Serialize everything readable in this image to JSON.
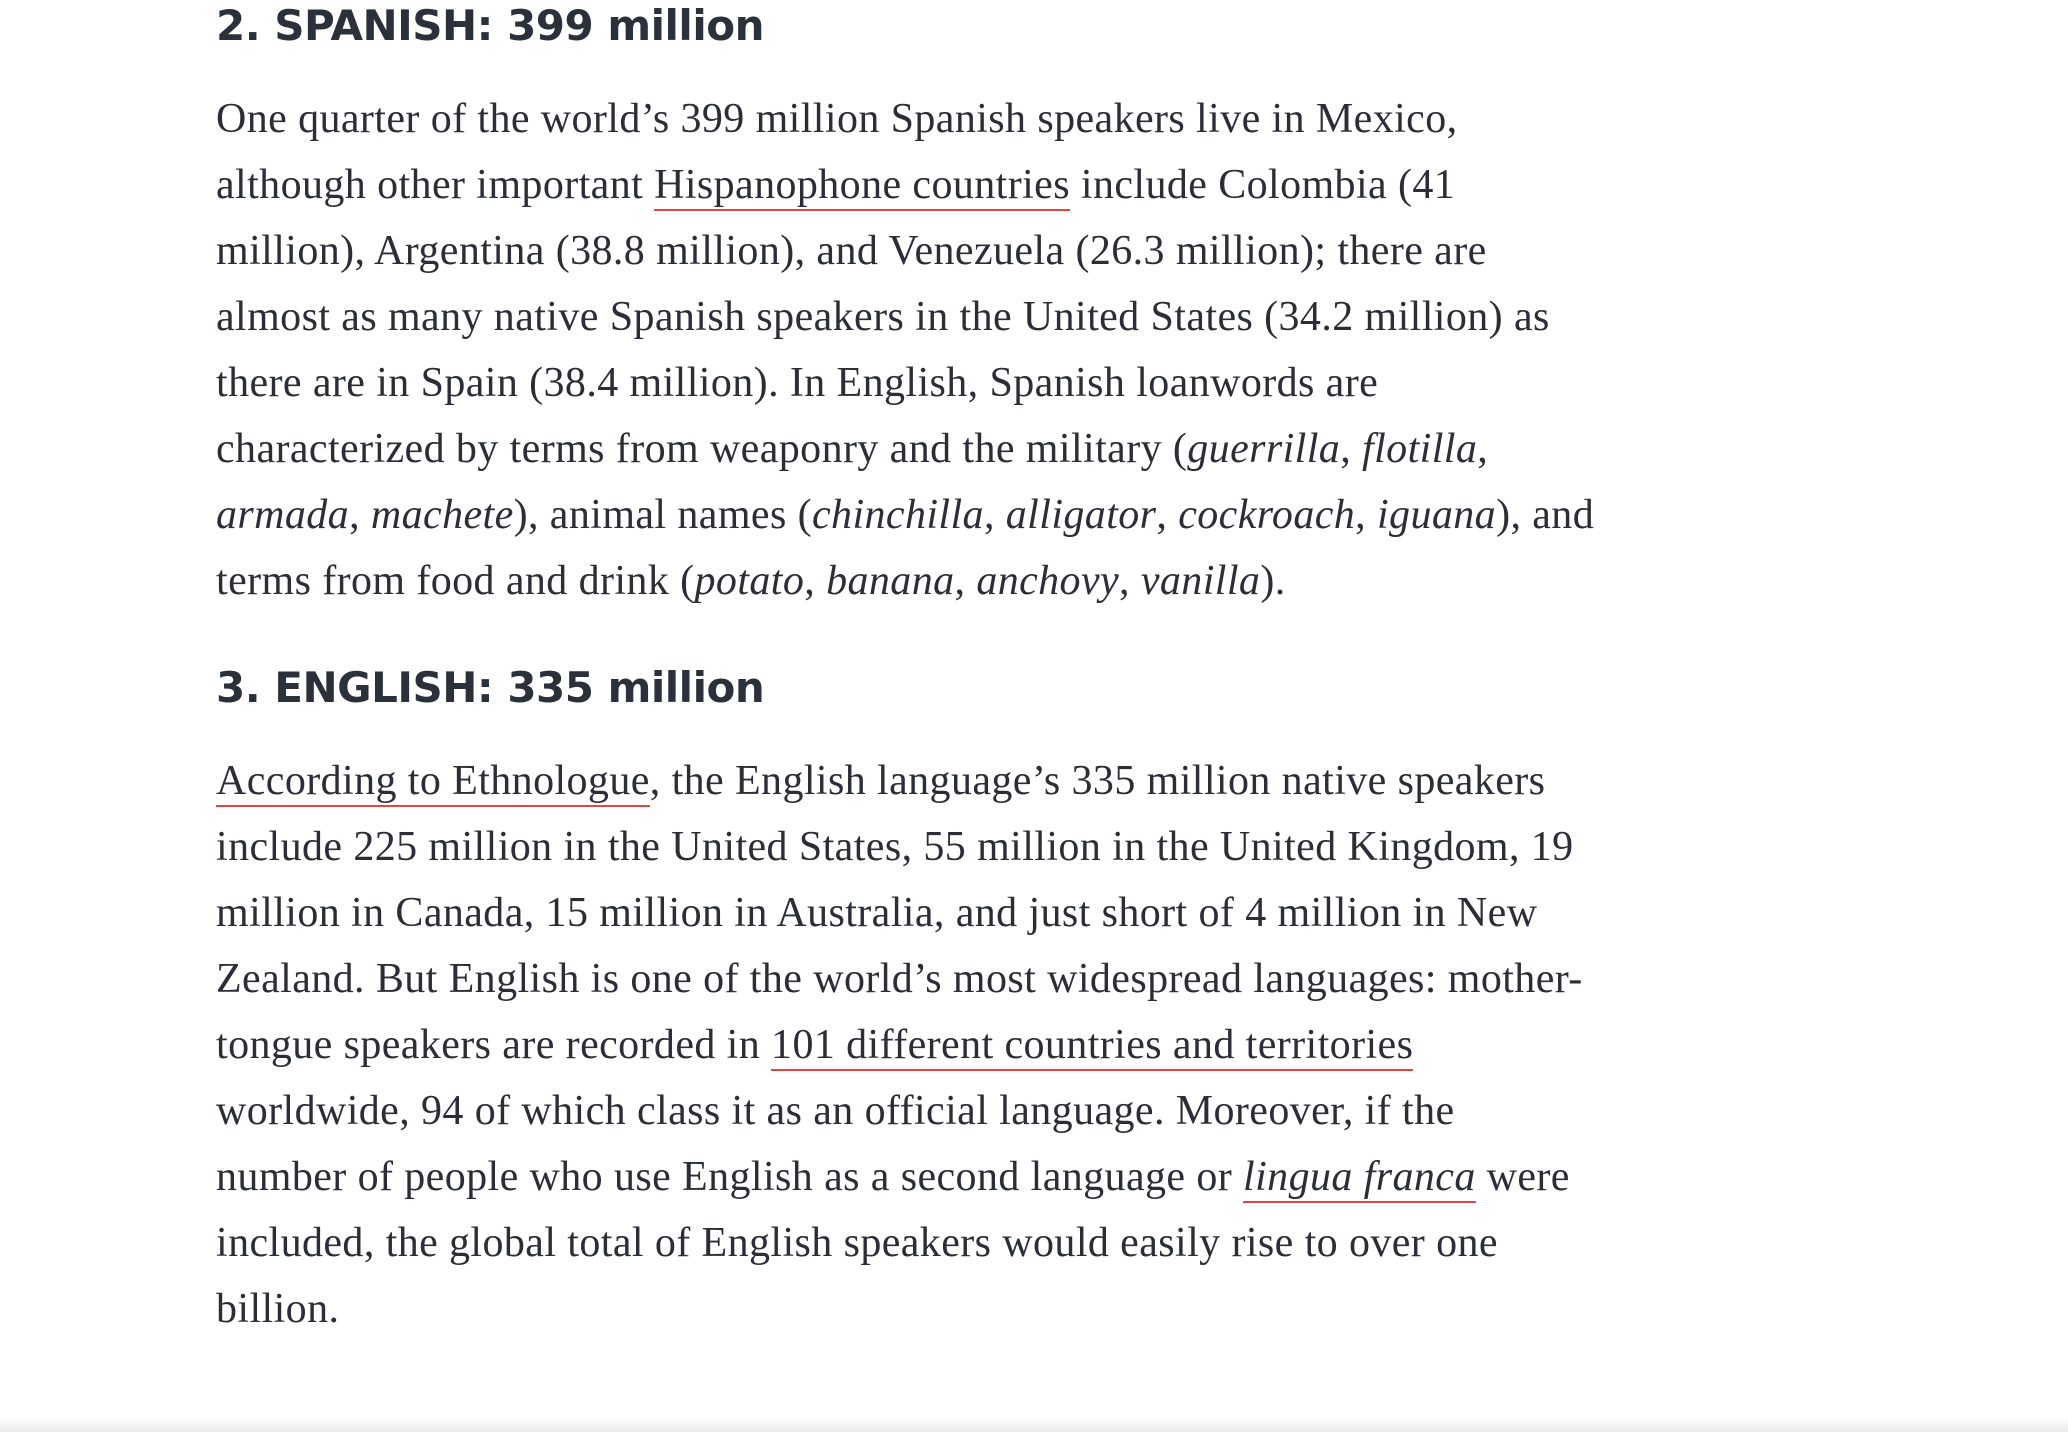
{
  "spanish": {
    "heading": "2. SPANISH: 399 million",
    "t1": "One quarter of the world’s 399 million Spanish speakers live in Mexico, although other important ",
    "link1": "Hispanophone countries",
    "t2": " include Colombia (41 million), Argentina (38.8 million), and Venezuela (26.3 million); there are almost as many native Spanish speakers in the United States (34.2 million) as there are in Spain (38.4 million). In English, Spanish loanwords are characterized by terms from weaponry and the military (",
    "w1": "guerrilla",
    "c1": ", ",
    "w2": "flotilla",
    "c2": ", ",
    "w3": "armada",
    "c3": ", ",
    "w4": "machete",
    "t3": "), animal names (",
    "w5": "chinchilla",
    "c4": ", ",
    "w6": "alligator",
    "c5": ", ",
    "w7": "cockroach",
    "c6": ", ",
    "w8": "iguana",
    "t4": "), and terms from food and drink (",
    "w9": "potato",
    "c7": ", ",
    "w10": "banana",
    "c8": ", ",
    "w11": "anchovy",
    "c9": ", ",
    "w12": "vanilla",
    "t5": ")."
  },
  "english": {
    "heading": "3. ENGLISH: 335 million",
    "link1": "According to Ethnologue",
    "t1": ", the English language’s 335 million native speakers include 225 million in the United States, 55 million in the United Kingdom, 19 million in Canada, 15 million in Australia, and just short of 4 million in New Zealand. But English is one of the world’s most widespread languages: mother-tongue speakers are recorded in ",
    "link2": "101 different countries and territories",
    "t2": " worldwide, 94 of which class it as an official language. Moreover, if the number of people who use English as a second language or ",
    "link3": "lingua franca",
    "t3": " were included, the global total of English speakers would easily rise to over one billion."
  }
}
